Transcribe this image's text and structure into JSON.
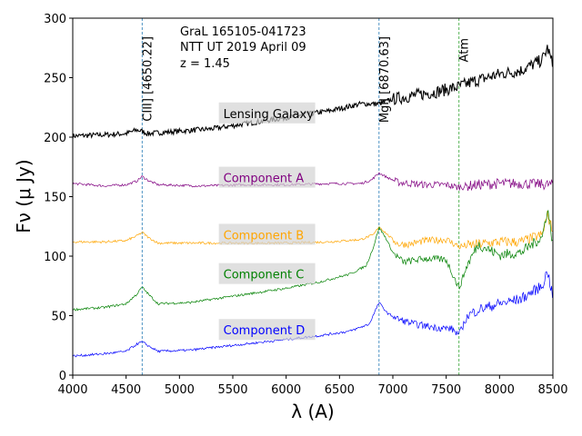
{
  "chart_data": {
    "type": "line",
    "xlabel": "λ (A)",
    "ylabel": "Fν (μ Jy)",
    "xlim": [
      4000,
      8500
    ],
    "ylim": [
      0,
      300
    ],
    "xticks": [
      4000,
      4500,
      5000,
      5500,
      6000,
      6500,
      7000,
      7500,
      8000,
      8500
    ],
    "yticks": [
      0,
      50,
      100,
      150,
      200,
      250,
      300
    ],
    "annotation": [
      "GraL 165105-041723",
      "NTT UT 2019 April 09",
      "z = 1.45"
    ],
    "vlines": [
      {
        "x": 4650.22,
        "label": "CIII] [4650.22]",
        "color": "#1f77b4"
      },
      {
        "x": 6870.63,
        "label": "MgII [6870.63]",
        "color": "#1f77b4"
      },
      {
        "x": 7620,
        "label": "Atm",
        "color": "#2ca02c"
      }
    ],
    "series": [
      {
        "name": "Lensing Galaxy",
        "color": "#000000",
        "label_x": 5940,
        "label_y": 220,
        "points": [
          [
            4000,
            201
          ],
          [
            4300,
            202
          ],
          [
            4500,
            203
          ],
          [
            4600,
            206
          ],
          [
            4650,
            205
          ],
          [
            4700,
            203
          ],
          [
            5000,
            205
          ],
          [
            5300,
            207
          ],
          [
            5600,
            211
          ],
          [
            5900,
            215
          ],
          [
            6100,
            218
          ],
          [
            6400,
            222
          ],
          [
            6700,
            228
          ],
          [
            6870,
            228
          ],
          [
            7000,
            232
          ],
          [
            7200,
            235
          ],
          [
            7400,
            238
          ],
          [
            7600,
            242
          ],
          [
            7800,
            248
          ],
          [
            8000,
            253
          ],
          [
            8200,
            256
          ],
          [
            8400,
            265
          ],
          [
            8450,
            275
          ],
          [
            8500,
            260
          ]
        ]
      },
      {
        "name": "Component A",
        "color": "#800080",
        "label_x": 5940,
        "label_y": 166,
        "points": [
          [
            4000,
            161
          ],
          [
            4300,
            159
          ],
          [
            4500,
            160
          ],
          [
            4600,
            163
          ],
          [
            4650,
            167
          ],
          [
            4720,
            163
          ],
          [
            4800,
            160
          ],
          [
            5200,
            159
          ],
          [
            5600,
            160
          ],
          [
            6000,
            160
          ],
          [
            6400,
            161
          ],
          [
            6700,
            161
          ],
          [
            6800,
            164
          ],
          [
            6870,
            170
          ],
          [
            6950,
            166
          ],
          [
            7050,
            162
          ],
          [
            7300,
            160
          ],
          [
            7500,
            160
          ],
          [
            7600,
            158
          ],
          [
            7800,
            160
          ],
          [
            8000,
            161
          ],
          [
            8200,
            161
          ],
          [
            8500,
            160
          ]
        ]
      },
      {
        "name": "Component B",
        "color": "#FFA500",
        "label_x": 5940,
        "label_y": 118,
        "points": [
          [
            4000,
            112
          ],
          [
            4300,
            112
          ],
          [
            4500,
            113
          ],
          [
            4600,
            117
          ],
          [
            4650,
            120
          ],
          [
            4720,
            115
          ],
          [
            4800,
            111
          ],
          [
            5200,
            111
          ],
          [
            5600,
            111
          ],
          [
            6000,
            111
          ],
          [
            6400,
            112
          ],
          [
            6700,
            114
          ],
          [
            6820,
            118
          ],
          [
            6870,
            125
          ],
          [
            6950,
            118
          ],
          [
            7050,
            110
          ],
          [
            7150,
            110
          ],
          [
            7300,
            113
          ],
          [
            7500,
            114
          ],
          [
            7620,
            108
          ],
          [
            7800,
            110
          ],
          [
            8000,
            112
          ],
          [
            8200,
            112
          ],
          [
            8400,
            118
          ],
          [
            8450,
            135
          ],
          [
            8500,
            120
          ]
        ]
      },
      {
        "name": "Component C",
        "color": "#008000",
        "label_x": 5940,
        "label_y": 85,
        "points": [
          [
            4000,
            55
          ],
          [
            4300,
            57
          ],
          [
            4500,
            60
          ],
          [
            4600,
            68
          ],
          [
            4650,
            74
          ],
          [
            4720,
            67
          ],
          [
            4800,
            60
          ],
          [
            5100,
            61
          ],
          [
            5400,
            65
          ],
          [
            5700,
            69
          ],
          [
            6000,
            73
          ],
          [
            6300,
            78
          ],
          [
            6600,
            85
          ],
          [
            6750,
            92
          ],
          [
            6820,
            108
          ],
          [
            6870,
            124
          ],
          [
            6930,
            116
          ],
          [
            7000,
            103
          ],
          [
            7100,
            95
          ],
          [
            7300,
            98
          ],
          [
            7500,
            97
          ],
          [
            7620,
            73
          ],
          [
            7700,
            93
          ],
          [
            7800,
            110
          ],
          [
            8000,
            101
          ],
          [
            8200,
            103
          ],
          [
            8400,
            116
          ],
          [
            8450,
            140
          ],
          [
            8500,
            110
          ]
        ]
      },
      {
        "name": "Component D",
        "color": "#0000FF",
        "label_x": 5940,
        "label_y": 38,
        "points": [
          [
            4000,
            16
          ],
          [
            4300,
            18
          ],
          [
            4500,
            20
          ],
          [
            4600,
            26
          ],
          [
            4650,
            28
          ],
          [
            4720,
            24
          ],
          [
            4800,
            20
          ],
          [
            5100,
            21
          ],
          [
            5400,
            24
          ],
          [
            5700,
            27
          ],
          [
            6000,
            30
          ],
          [
            6300,
            33
          ],
          [
            6600,
            37
          ],
          [
            6780,
            43
          ],
          [
            6870,
            61
          ],
          [
            6950,
            52
          ],
          [
            7050,
            47
          ],
          [
            7200,
            43
          ],
          [
            7400,
            40
          ],
          [
            7550,
            39
          ],
          [
            7620,
            34
          ],
          [
            7700,
            50
          ],
          [
            7800,
            55
          ],
          [
            8000,
            60
          ],
          [
            8200,
            64
          ],
          [
            8400,
            75
          ],
          [
            8450,
            88
          ],
          [
            8500,
            65
          ]
        ]
      }
    ]
  }
}
